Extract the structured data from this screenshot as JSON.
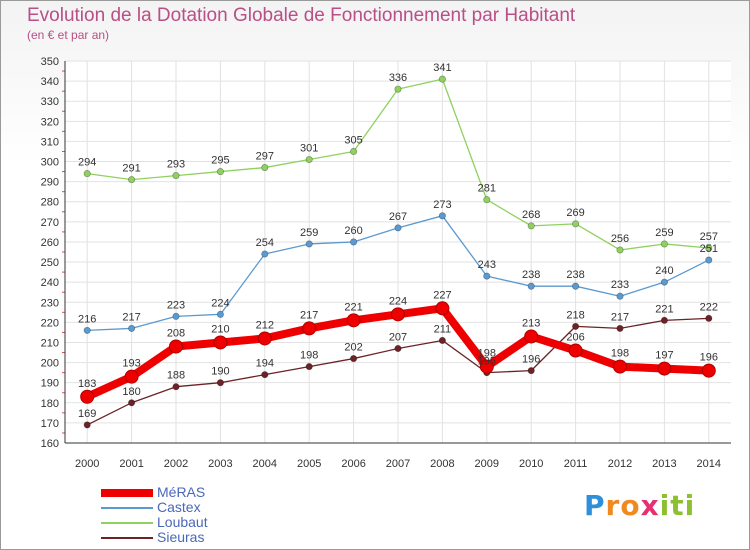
{
  "chart_data": {
    "type": "line",
    "title": "Evolution de la Dotation Globale de Fonctionnement par Habitant",
    "subtitle": "(en € et par an)",
    "x": [
      2000,
      2001,
      2002,
      2003,
      2004,
      2005,
      2006,
      2007,
      2008,
      2009,
      2010,
      2011,
      2012,
      2013,
      2014
    ],
    "ylim": [
      160,
      350
    ],
    "ytick_step": 10,
    "grid": true,
    "legend_position": "bottom-left",
    "series": [
      {
        "name": "Loubaut",
        "color": "#8fd15e",
        "values": [
          294,
          291,
          293,
          295,
          297,
          301,
          305,
          336,
          341,
          281,
          268,
          269,
          256,
          259,
          257
        ]
      },
      {
        "name": "Castex",
        "color": "#5b9ad0",
        "values": [
          216,
          217,
          223,
          224,
          254,
          259,
          260,
          267,
          273,
          243,
          238,
          238,
          233,
          240,
          251
        ]
      },
      {
        "name": "Sieuras",
        "color": "#6b2326",
        "values": [
          169,
          180,
          188,
          190,
          194,
          198,
          202,
          207,
          211,
          195,
          196,
          218,
          217,
          221,
          222
        ]
      },
      {
        "name": "MéRAS",
        "color": "#ee0000",
        "values": [
          183,
          193,
          208,
          210,
          212,
          217,
          221,
          224,
          227,
          198,
          213,
          206,
          198,
          197,
          196
        ]
      }
    ],
    "legend": [
      {
        "name": "MéRAS",
        "color": "#ee0000"
      },
      {
        "name": "Castex",
        "color": "#5b9ad0"
      },
      {
        "name": "Loubaut",
        "color": "#8fd15e"
      },
      {
        "name": "Sieuras",
        "color": "#6b2326"
      }
    ]
  },
  "brand": {
    "p": "P",
    "ro": "ro",
    "x": "x",
    "iti": "iti"
  }
}
